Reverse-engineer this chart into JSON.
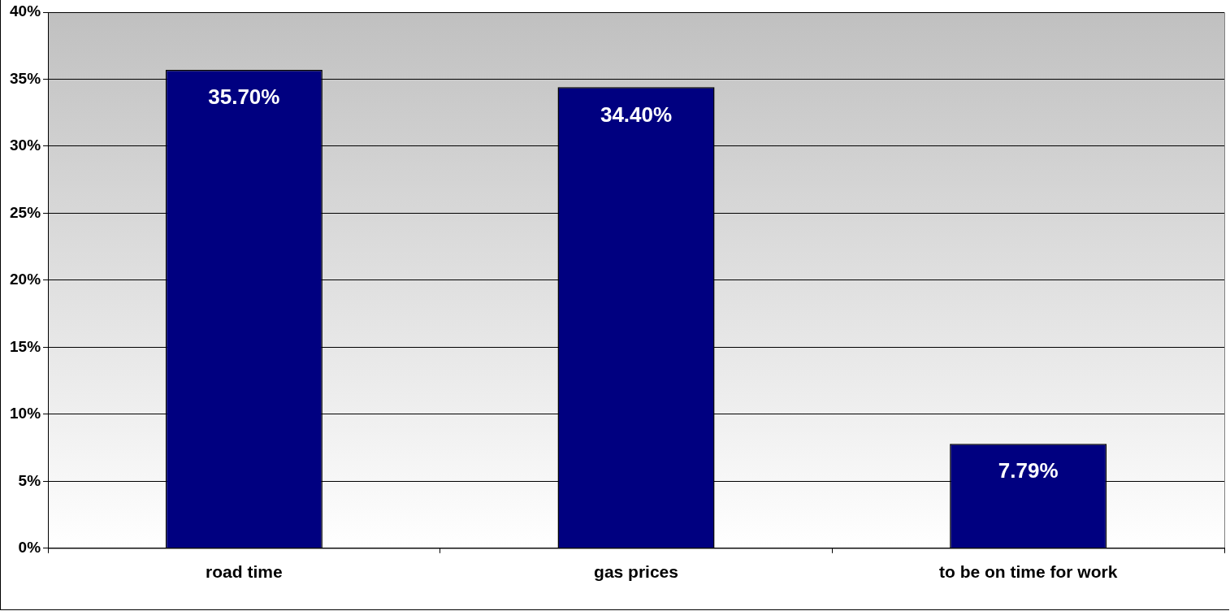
{
  "chart_data": {
    "type": "bar",
    "categories": [
      "road time",
      "gas prices",
      "to be on time for work"
    ],
    "values": [
      35.7,
      34.4,
      7.79
    ],
    "value_labels": [
      "35.70%",
      "34.40%",
      "7.79%"
    ],
    "color": "#000080",
    "ylim": [
      0,
      40
    ],
    "yticks": [
      {
        "value": 0,
        "label": "0%"
      },
      {
        "value": 5,
        "label": "5%"
      },
      {
        "value": 10,
        "label": "10%"
      },
      {
        "value": 15,
        "label": "15%"
      },
      {
        "value": 20,
        "label": "20%"
      },
      {
        "value": 25,
        "label": "25%"
      },
      {
        "value": 30,
        "label": "30%"
      },
      {
        "value": 35,
        "label": "35%"
      },
      {
        "value": 40,
        "label": "40%"
      }
    ],
    "grid": "y",
    "legend": false
  }
}
